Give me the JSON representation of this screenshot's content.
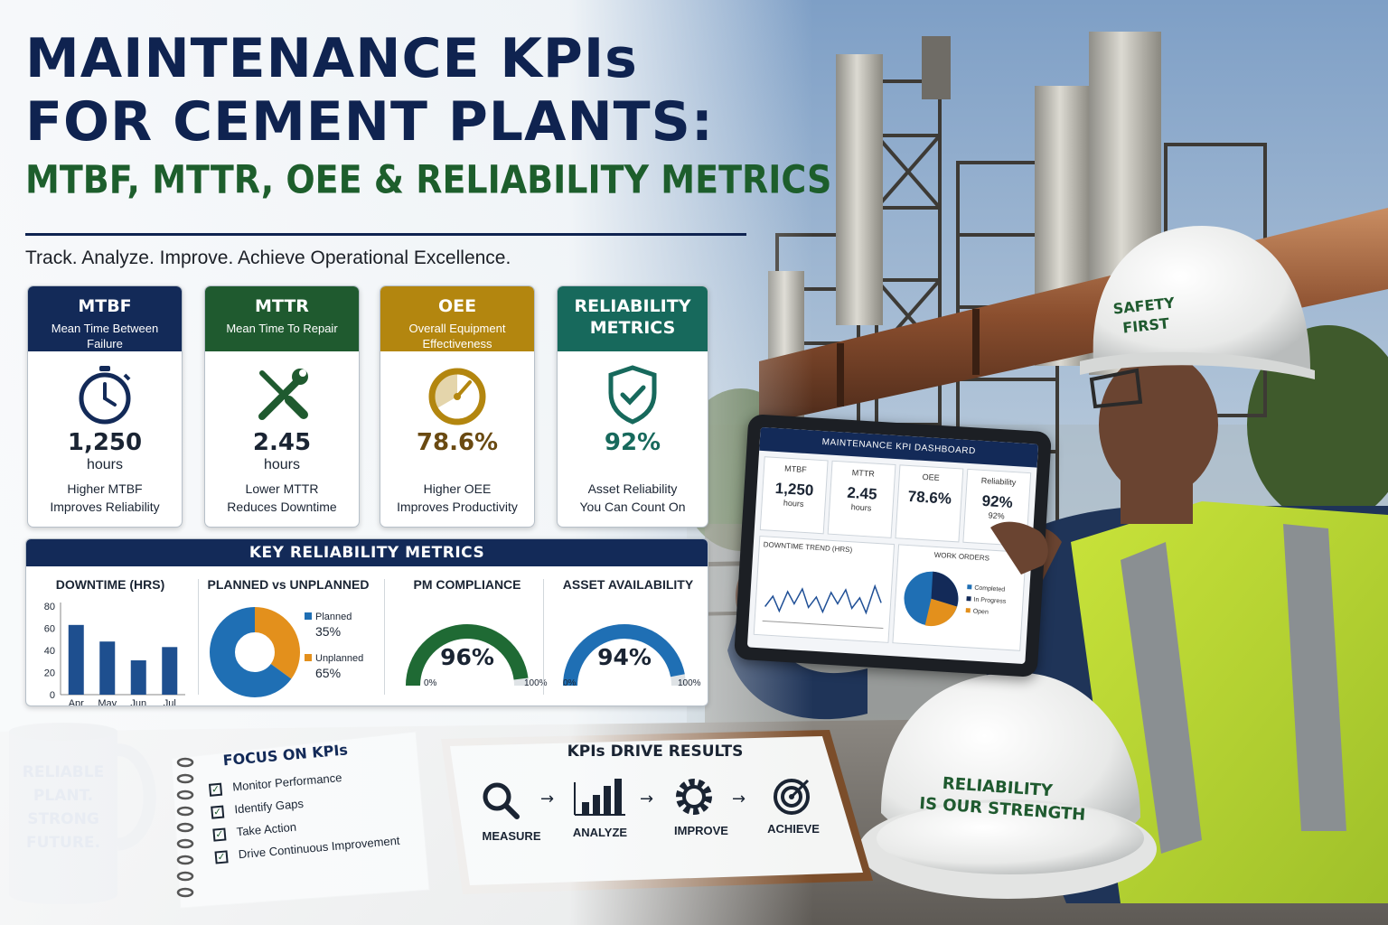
{
  "title": {
    "line1": "MAINTENANCE KPIs",
    "line2": "FOR CEMENT PLANTS:",
    "subtitle": "MTBF, MTTR, OEE & RELIABILITY METRICS"
  },
  "tagline": "Track. Analyze. Improve. Achieve Operational Excellence.",
  "colors": {
    "navy": "#132a58",
    "green": "#1f5a2f",
    "gold": "#b3860f",
    "teal": "#17695c",
    "blue": "#1f6fb4",
    "orange": "#e3901c"
  },
  "cards": [
    {
      "abbr": "MTBF",
      "full": "Mean Time Between Failure",
      "icon": "stopwatch-icon",
      "value": "1,250",
      "unit": "hours",
      "desc1": "Higher MTBF",
      "desc2": "Improves Reliability"
    },
    {
      "abbr": "MTTR",
      "full": "Mean Time To Repair",
      "icon": "wrench-screwdriver-icon",
      "value": "2.45",
      "unit": "hours",
      "desc1": "Lower MTTR",
      "desc2": "Reduces Downtime"
    },
    {
      "abbr": "OEE",
      "full": "Overall Equipment Effectiveness",
      "icon": "gauge-icon",
      "value": "78.6%",
      "unit": "",
      "desc1": "Higher OEE",
      "desc2": "Improves Productivity"
    },
    {
      "abbr1": "RELIABILITY",
      "abbr2": "METRICS",
      "icon": "shield-check-icon",
      "value": "92%",
      "unit": "",
      "desc1": "Asset Reliability",
      "desc2": "You Can Count On"
    }
  ],
  "metrics_panel": {
    "title": "KEY RELIABILITY METRICS",
    "downtime": {
      "title": "DOWNTIME (HRS)",
      "y_ticks": [
        "80",
        "60",
        "40",
        "20",
        "0"
      ]
    },
    "planned": {
      "title": "PLANNED vs UNPLANNED",
      "planned_label": "Planned",
      "planned_value": "35%",
      "unplanned_label": "Unplanned",
      "unplanned_value": "65%"
    },
    "pm": {
      "title": "PM COMPLIANCE",
      "value": "96%",
      "min": "0%",
      "max": "100%",
      "fraction": 0.96
    },
    "availability": {
      "title": "ASSET AVAILABILITY",
      "value": "94%",
      "min": "0%",
      "max": "100%",
      "fraction": 0.94
    }
  },
  "chart_data": [
    {
      "type": "bar",
      "categories": [
        "Apr",
        "May",
        "Jun",
        "Jul"
      ],
      "values": [
        63,
        48,
        31,
        43
      ],
      "title": "DOWNTIME (HRS)",
      "ylim": [
        0,
        80
      ]
    },
    {
      "type": "pie",
      "categories": [
        "Planned",
        "Unplanned"
      ],
      "values": [
        35,
        65
      ],
      "title": "PLANNED vs UNPLANNED"
    }
  ],
  "tablet": {
    "title": "MAINTENANCE KPI DASHBOARD",
    "tiles": [
      {
        "label": "MTBF",
        "value": "1,250",
        "unit": "hours"
      },
      {
        "label": "MTTR",
        "value": "2.45",
        "unit": "hours"
      },
      {
        "label": "OEE",
        "value": "78.6%",
        "unit": ""
      },
      {
        "label": "Reliability",
        "value": "92%",
        "unit": "92%"
      }
    ],
    "trend_title": "DOWNTIME TREND (HRS)",
    "orders_title": "WORK ORDERS",
    "legend": [
      "Completed",
      "In Progress",
      "Open"
    ]
  },
  "helmet_text": {
    "line1": "SAFETY",
    "line2": "FIRST"
  },
  "desk_helmet": {
    "line1": "RELIABILITY",
    "line2": "IS OUR STRENGTH"
  },
  "mug": {
    "line1": "RELIABLE",
    "line2": "PLANT.",
    "line3": "STRONG",
    "line4": "FUTURE."
  },
  "notebook": {
    "title": "FOCUS ON KPIs",
    "items": [
      "Monitor Performance",
      "Identify Gaps",
      "Take Action",
      "Drive Continuous Improvement"
    ]
  },
  "clipboard": {
    "title": "KPIs DRIVE RESULTS",
    "steps": [
      "MEASURE",
      "ANALYZE",
      "IMPROVE",
      "ACHIEVE"
    ]
  }
}
